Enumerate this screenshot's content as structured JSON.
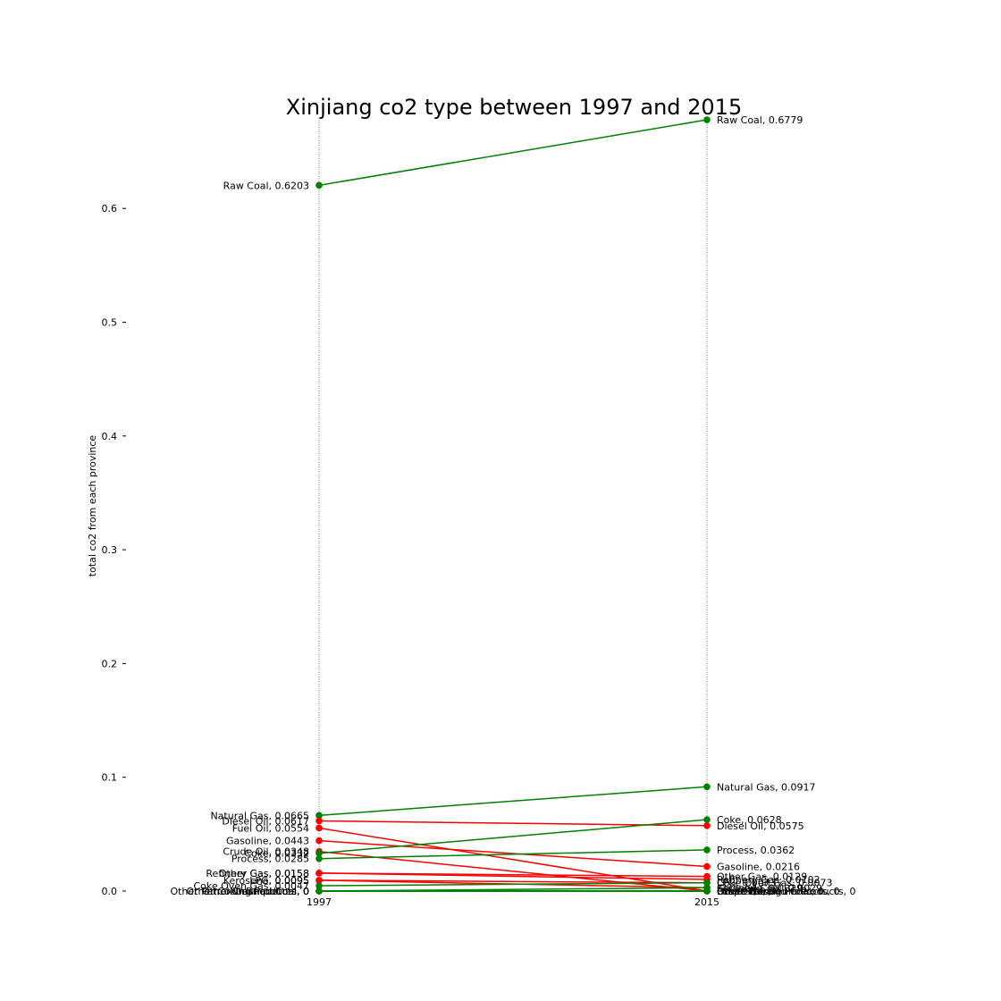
{
  "chart_data": {
    "type": "slope",
    "title": "Xinjiang co2 type between 1997 and 2015",
    "ylabel": "total co2 from each province",
    "xlabel": "",
    "x": [
      "1997",
      "2015"
    ],
    "ylim": [
      0,
      0.68
    ],
    "yticks": [
      "0.0",
      "0.1",
      "0.2",
      "0.3",
      "0.4",
      "0.5",
      "0.6"
    ],
    "grid": false,
    "colors": {
      "increase": "#008000",
      "decrease": "#ff0000",
      "guide": "#555555"
    },
    "series": [
      {
        "name": "Raw Coal",
        "values": [
          0.6203,
          0.6779
        ]
      },
      {
        "name": "Natural Gas",
        "values": [
          0.0665,
          0.0917
        ]
      },
      {
        "name": "Diesel Oil",
        "values": [
          0.0617,
          0.0575
        ]
      },
      {
        "name": "Fuel Oil",
        "values": [
          0.0554,
          0.0
        ]
      },
      {
        "name": "Gasoline",
        "values": [
          0.0443,
          0.0216
        ]
      },
      {
        "name": "Crude Oil",
        "values": [
          0.0348,
          0.0
        ]
      },
      {
        "name": "Coke",
        "values": [
          0.0332,
          0.0628
        ]
      },
      {
        "name": "Process",
        "values": [
          0.0285,
          0.0362
        ]
      },
      {
        "name": "Other Gas",
        "values": [
          0.0158,
          0.0129
        ]
      },
      {
        "name": "Refinery Gas",
        "values": [
          0.0158,
          0.0102
        ]
      },
      {
        "name": "LPG",
        "values": [
          0.0095,
          0.0073
        ]
      },
      {
        "name": "Kerosene",
        "values": [
          0.0095,
          0.0029
        ]
      },
      {
        "name": "Coke Oven Gas",
        "values": [
          0.0047,
          0.0073
        ]
      },
      {
        "name": "Cleaned Coal",
        "values": [
          0.0,
          0.0029
        ]
      },
      {
        "name": "Other Petroleum Products",
        "values": [
          0.0,
          0.0
        ]
      },
      {
        "name": "Other Coking Products",
        "values": [
          0.0,
          0.0
        ]
      },
      {
        "name": "Other Washed Coal",
        "values": [
          0.0,
          0.0
        ]
      },
      {
        "name": "Briquettes",
        "values": [
          0.0,
          0.0
        ]
      }
    ]
  }
}
